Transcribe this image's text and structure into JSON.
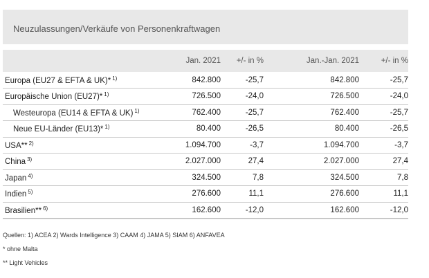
{
  "title": "Neuzulassungen/Verkäufe von Personenkraftwagen",
  "headers": {
    "jan": "Jan. 2021",
    "chg1": "+/- in %",
    "ytd": "Jan.-Jan. 2021",
    "chg2": "+/- in %"
  },
  "rows": [
    {
      "label": "Europa (EU27 & EFTA & UK)*",
      "note": "1)",
      "jan": "842.800",
      "chg1": "-25,7",
      "ytd": "842.800",
      "chg2": "-25,7"
    },
    {
      "label": "Europäische Union (EU27)*",
      "note": "1)",
      "jan": "726.500",
      "chg1": "-24,0",
      "ytd": "726.500",
      "chg2": "-24,0"
    },
    {
      "label": "Westeuropa (EU14 & EFTA & UK)",
      "note": "1)",
      "jan": "762.400",
      "chg1": "-25,7",
      "ytd": "762.400",
      "chg2": "-25,7"
    },
    {
      "label": "Neue EU-Länder (EU13)*",
      "note": "1)",
      "jan": "80.400",
      "chg1": "-26,5",
      "ytd": "80.400",
      "chg2": "-26,5"
    },
    {
      "label": "USA**",
      "note": "2)",
      "jan": "1.094.700",
      "chg1": "-3,7",
      "ytd": "1.094.700",
      "chg2": "-3,7"
    },
    {
      "label": "China",
      "note": "3)",
      "jan": "2.027.000",
      "chg1": "27,4",
      "ytd": "2.027.000",
      "chg2": "27,4"
    },
    {
      "label": "Japan",
      "note": "4)",
      "jan": "324.500",
      "chg1": "7,8",
      "ytd": "324.500",
      "chg2": "7,8"
    },
    {
      "label": "Indien",
      "note": "5)",
      "jan": "276.600",
      "chg1": "11,1",
      "ytd": "276.600",
      "chg2": "11,1"
    },
    {
      "label": "Brasilien**",
      "note": "6)",
      "jan": "162.600",
      "chg1": "-12,0",
      "ytd": "162.600",
      "chg2": "-12,0"
    }
  ],
  "notes": {
    "sources": "Quellen: 1) ACEA  2) Wards Intelligence  3) CAAM  4) JAMA 5) SIAM  6) ANFAVEA",
    "malta": "* ohne Malta",
    "light": "** Light Vehicles"
  }
}
